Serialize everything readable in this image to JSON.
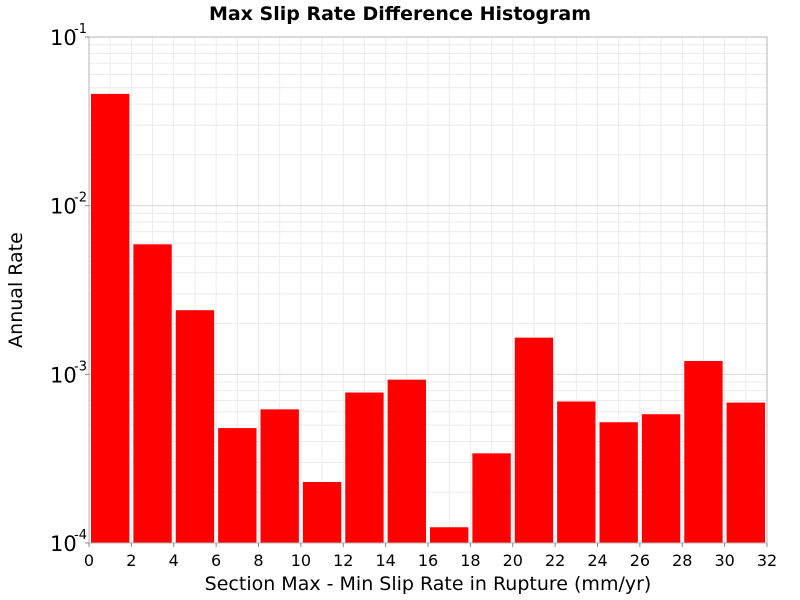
{
  "chart_data": {
    "type": "bar",
    "title": "Max Slip Rate Difference Histogram",
    "xlabel": "Section Max - Min Slip Rate in Rupture (mm/yr)",
    "ylabel": "Annual Rate",
    "yscale": "log",
    "xlim": [
      0,
      32
    ],
    "ylim": [
      0.0001,
      0.1
    ],
    "grid": true,
    "bar_color": "#ff0000",
    "bin_width": 2,
    "x": [
      1,
      3,
      5,
      7,
      9,
      11,
      13,
      15,
      17,
      19,
      21,
      23,
      25,
      27,
      29,
      31
    ],
    "values": [
      0.046,
      0.0059,
      0.0024,
      0.00048,
      0.00062,
      0.00023,
      0.00078,
      0.00093,
      0.000124,
      0.00034,
      0.00165,
      0.00069,
      0.00052,
      0.00058,
      0.0012,
      0.00068
    ],
    "x_ticks": [
      "0",
      "2",
      "4",
      "6",
      "8",
      "10",
      "12",
      "14",
      "16",
      "18",
      "20",
      "22",
      "24",
      "26",
      "28",
      "30",
      "32"
    ],
    "y_ticks": [
      {
        "base": "10",
        "exp": "-1",
        "value": 0.1
      },
      {
        "base": "10",
        "exp": "-2",
        "value": 0.01
      },
      {
        "base": "10",
        "exp": "-3",
        "value": 0.001
      },
      {
        "base": "10",
        "exp": "-4",
        "value": 0.0001
      }
    ]
  }
}
